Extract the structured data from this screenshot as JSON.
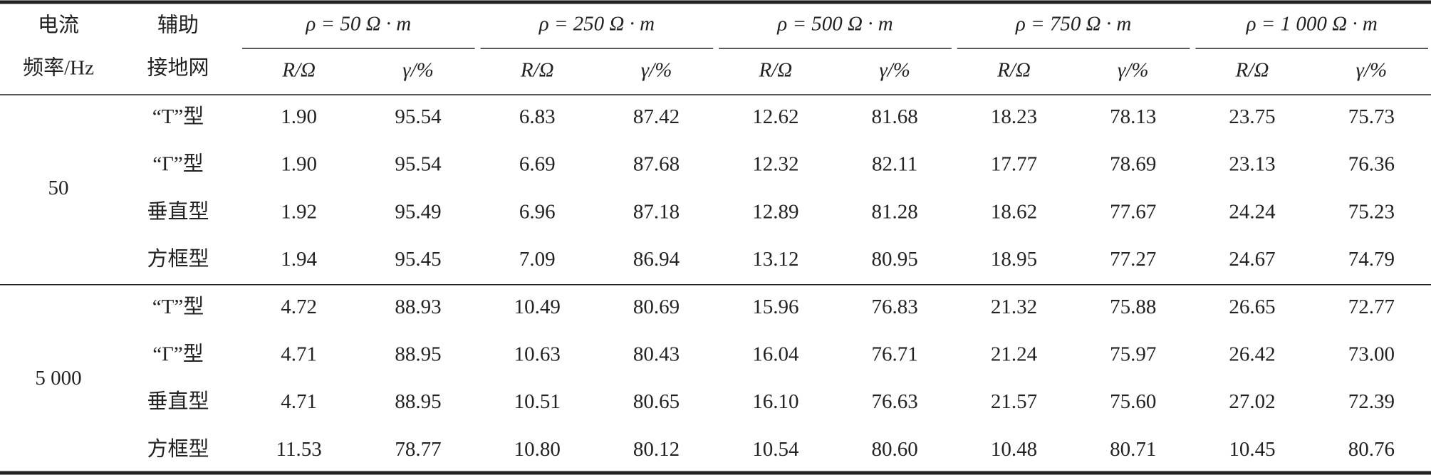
{
  "header": {
    "frequency": [
      "电流",
      "频率/Hz"
    ],
    "network": [
      "辅助",
      "接地网"
    ],
    "groups": [
      "ρ = 50 Ω · m",
      "ρ = 250 Ω · m",
      "ρ = 500 Ω · m",
      "ρ = 750 Ω · m",
      "ρ = 1 000 Ω · m"
    ],
    "subheaders": [
      "R/Ω",
      "γ/%"
    ]
  },
  "table": {
    "groups": [
      {
        "frequency": "50",
        "rows": [
          {
            "network": "“T”型",
            "values": [
              "1.90",
              "95.54",
              "6.83",
              "87.42",
              "12.62",
              "81.68",
              "18.23",
              "78.13",
              "23.75",
              "75.73"
            ]
          },
          {
            "network": "“Γ”型",
            "values": [
              "1.90",
              "95.54",
              "6.69",
              "87.68",
              "12.32",
              "82.11",
              "17.77",
              "78.69",
              "23.13",
              "76.36"
            ]
          },
          {
            "network": "垂直型",
            "values": [
              "1.92",
              "95.49",
              "6.96",
              "87.18",
              "12.89",
              "81.28",
              "18.62",
              "77.67",
              "24.24",
              "75.23"
            ]
          },
          {
            "network": "方框型",
            "values": [
              "1.94",
              "95.45",
              "7.09",
              "86.94",
              "13.12",
              "80.95",
              "18.95",
              "77.27",
              "24.67",
              "74.79"
            ]
          }
        ]
      },
      {
        "frequency": "5 000",
        "rows": [
          {
            "network": "“T”型",
            "values": [
              "4.72",
              "88.93",
              "10.49",
              "80.69",
              "15.96",
              "76.83",
              "21.32",
              "75.88",
              "26.65",
              "72.77"
            ]
          },
          {
            "network": "“Γ”型",
            "values": [
              "4.71",
              "88.95",
              "10.63",
              "80.43",
              "16.04",
              "76.71",
              "21.24",
              "75.97",
              "26.42",
              "73.00"
            ]
          },
          {
            "network": "垂直型",
            "values": [
              "4.71",
              "88.95",
              "10.51",
              "80.65",
              "16.10",
              "76.63",
              "21.57",
              "75.60",
              "27.02",
              "72.39"
            ]
          },
          {
            "network": "方框型",
            "values": [
              "11.53",
              "78.77",
              "10.80",
              "80.12",
              "10.54",
              "80.60",
              "10.48",
              "80.71",
              "10.45",
              "80.76"
            ]
          }
        ]
      }
    ]
  }
}
